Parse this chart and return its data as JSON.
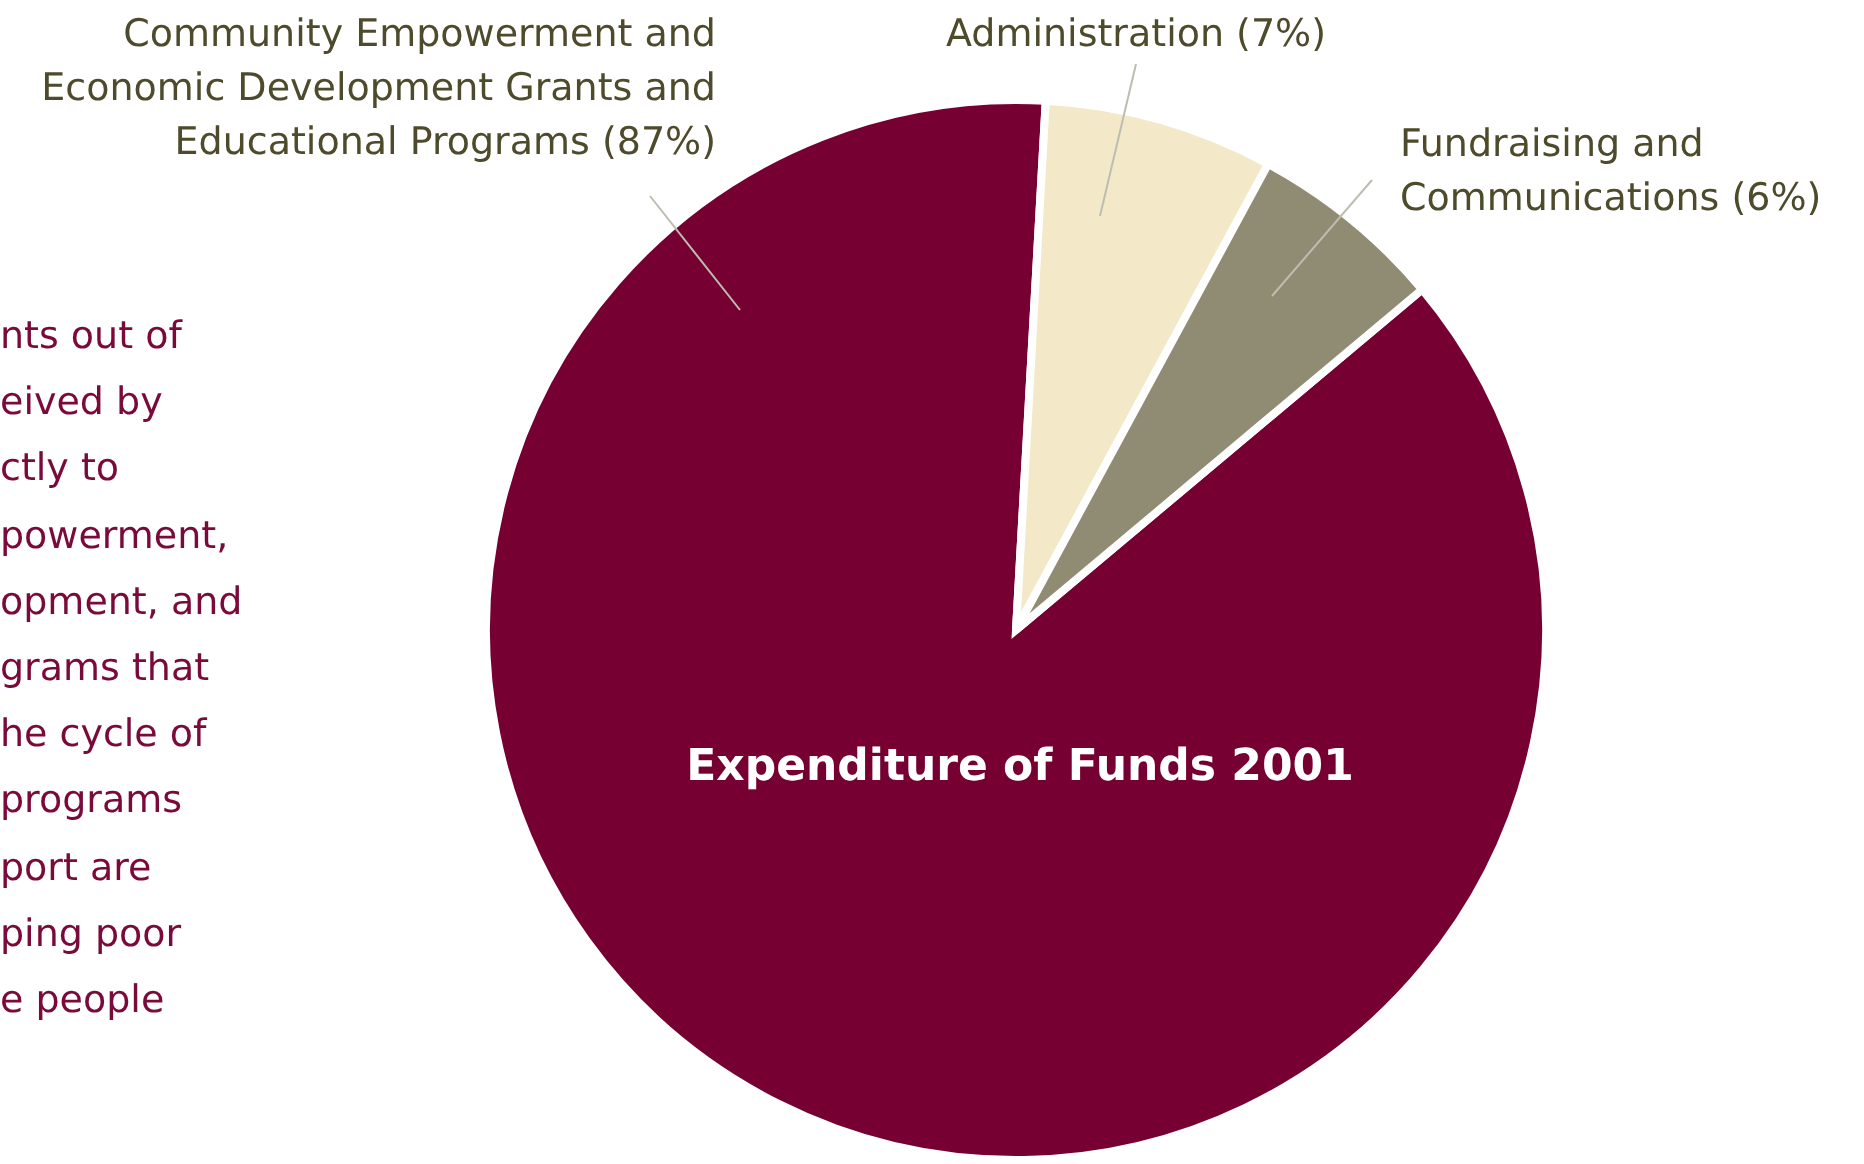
{
  "chart_data": {
    "type": "pie",
    "title": "Expenditure of Funds 2001",
    "categories": [
      "Community Empowerment and Economic Development Grants and Educational Programs (87%)",
      "Administration (7%)",
      "Fundraising and Communications (6%)"
    ],
    "values": [
      87,
      7,
      6
    ],
    "colors": [
      "#770033",
      "#f3e9c9",
      "#908c74"
    ],
    "annotations": [
      "nts out of",
      "eived by",
      "ctly to",
      "powerment,",
      "opment, and",
      "grams that",
      "he cycle of",
      "programs",
      "port are",
      "ping poor",
      "e people"
    ]
  }
}
